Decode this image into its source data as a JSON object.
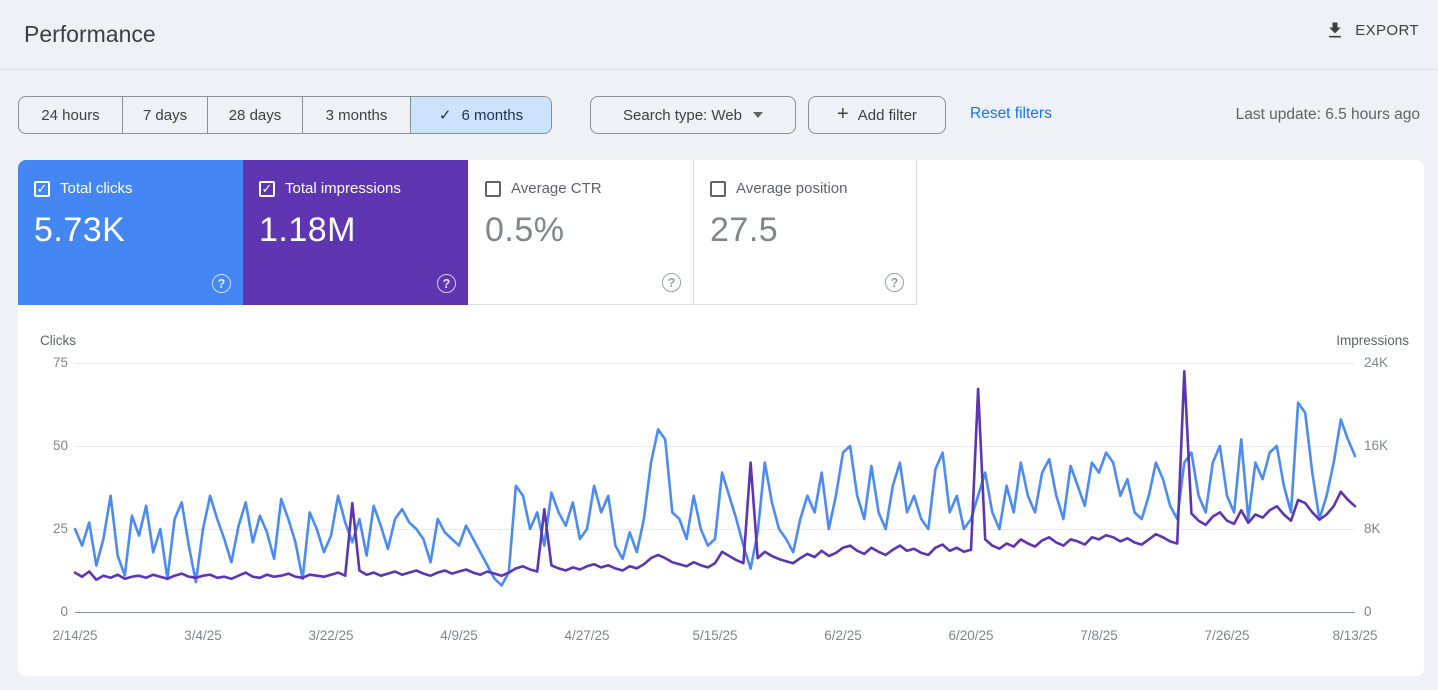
{
  "header": {
    "title": "Performance",
    "export_label": "EXPORT"
  },
  "filters": {
    "date_ranges": [
      {
        "label": "24 hours",
        "selected": false
      },
      {
        "label": "7 days",
        "selected": false
      },
      {
        "label": "28 days",
        "selected": false
      },
      {
        "label": "3 months",
        "selected": false
      },
      {
        "label": "6 months",
        "selected": true
      }
    ],
    "search_type_label": "Search type: Web",
    "add_filter_label": "Add filter",
    "reset_filters_label": "Reset filters",
    "last_update": "Last update: 6.5 hours ago"
  },
  "metric_cards": [
    {
      "label": "Total clicks",
      "value": "5.73K",
      "checked": true,
      "color": "#4487f2"
    },
    {
      "label": "Total impressions",
      "value": "1.18M",
      "checked": true,
      "color": "#5f35b1"
    },
    {
      "label": "Average CTR",
      "value": "0.5%",
      "checked": false,
      "color": "#ffffff"
    },
    {
      "label": "Average position",
      "value": "27.5",
      "checked": false,
      "color": "#ffffff"
    }
  ],
  "chart_data": {
    "type": "line",
    "grid": "horizontal",
    "legend_position": "none",
    "left_axis": {
      "label": "Clicks",
      "range": [
        0,
        75
      ],
      "ticks": [
        "75",
        "50",
        "25",
        "0"
      ]
    },
    "right_axis": {
      "label": "Impressions",
      "range": [
        0,
        24000
      ],
      "ticks": [
        "24K",
        "16K",
        "8K",
        "0"
      ]
    },
    "x_tick_labels": [
      "2/14/25",
      "3/4/25",
      "3/22/25",
      "4/9/25",
      "4/27/25",
      "5/15/25",
      "6/2/25",
      "6/20/25",
      "7/8/25",
      "7/26/25",
      "8/13/25"
    ],
    "series": [
      {
        "name": "Clicks",
        "axis": "left",
        "color": "#4c8bf4",
        "values": [
          25,
          20,
          27,
          14,
          22,
          35,
          17,
          11,
          29,
          23,
          32,
          18,
          25,
          10,
          28,
          33,
          20,
          9,
          25,
          35,
          28,
          22,
          15,
          26,
          33,
          21,
          29,
          24,
          16,
          34,
          28,
          21,
          10,
          30,
          25,
          18,
          23,
          35,
          27,
          21,
          28,
          17,
          32,
          26,
          19,
          28,
          31,
          27,
          25,
          22,
          15,
          28,
          24,
          22,
          20,
          26,
          22,
          18,
          14,
          10,
          8,
          12,
          38,
          35,
          25,
          30,
          20,
          36,
          30,
          26,
          33,
          22,
          25,
          38,
          30,
          35,
          20,
          16,
          24,
          18,
          28,
          45,
          55,
          52,
          30,
          28,
          22,
          35,
          25,
          20,
          22,
          42,
          35,
          28,
          20,
          13,
          24,
          45,
          33,
          25,
          22,
          18,
          28,
          35,
          30,
          42,
          25,
          35,
          48,
          50,
          35,
          28,
          44,
          30,
          25,
          38,
          45,
          30,
          35,
          28,
          25,
          43,
          48,
          30,
          35,
          25,
          28,
          35,
          42,
          30,
          25,
          38,
          30,
          45,
          35,
          30,
          42,
          46,
          35,
          28,
          44,
          38,
          32,
          45,
          42,
          48,
          45,
          35,
          40,
          30,
          28,
          35,
          45,
          40,
          32,
          28,
          45,
          48,
          35,
          30,
          45,
          50,
          35,
          30,
          52,
          28,
          45,
          40,
          48,
          50,
          38,
          30,
          63,
          60,
          42,
          28,
          35,
          45,
          58,
          52,
          47
        ]
      },
      {
        "name": "Impressions",
        "axis": "right",
        "color": "#5e35b1",
        "values": [
          3800,
          3400,
          3900,
          3100,
          3500,
          3300,
          3600,
          3200,
          3400,
          3500,
          3300,
          3600,
          3400,
          3200,
          3500,
          3700,
          3400,
          3300,
          3500,
          3600,
          3300,
          3400,
          3200,
          3500,
          3800,
          3400,
          3300,
          3600,
          3400,
          3500,
          3700,
          3400,
          3300,
          3600,
          3500,
          3400,
          3600,
          3800,
          3500,
          10500,
          4000,
          3600,
          3800,
          3500,
          3700,
          3900,
          3600,
          3800,
          4000,
          3700,
          3500,
          3800,
          4000,
          3700,
          3900,
          4100,
          3800,
          3600,
          3900,
          3700,
          3500,
          3800,
          4200,
          4400,
          4100,
          3900,
          9900,
          4500,
          4200,
          4000,
          4300,
          4100,
          4400,
          4600,
          4300,
          4500,
          4200,
          4000,
          4400,
          4200,
          4600,
          5200,
          5500,
          5200,
          4800,
          4600,
          4400,
          4800,
          4500,
          4300,
          4700,
          5800,
          5400,
          5000,
          4700,
          14400,
          5200,
          5800,
          5400,
          5100,
          4900,
          4700,
          5200,
          5600,
          5300,
          5900,
          5400,
          5700,
          6200,
          6400,
          5900,
          5600,
          6200,
          5800,
          5500,
          6000,
          6400,
          5900,
          6100,
          5700,
          5500,
          6200,
          6500,
          5900,
          6200,
          5800,
          6000,
          21500,
          7000,
          6400,
          6100,
          6600,
          6300,
          7000,
          6600,
          6300,
          6900,
          7200,
          6700,
          6400,
          7000,
          6800,
          6500,
          7200,
          7000,
          7400,
          7200,
          6800,
          7100,
          6700,
          6500,
          7000,
          7500,
          7200,
          6800,
          6600,
          23200,
          9500,
          8800,
          8400,
          9200,
          9600,
          8800,
          8500,
          9800,
          8600,
          9400,
          9100,
          9800,
          10200,
          9400,
          8800,
          10800,
          10500,
          9600,
          8900,
          9400,
          10200,
          11600,
          10800,
          10200
        ]
      }
    ]
  }
}
